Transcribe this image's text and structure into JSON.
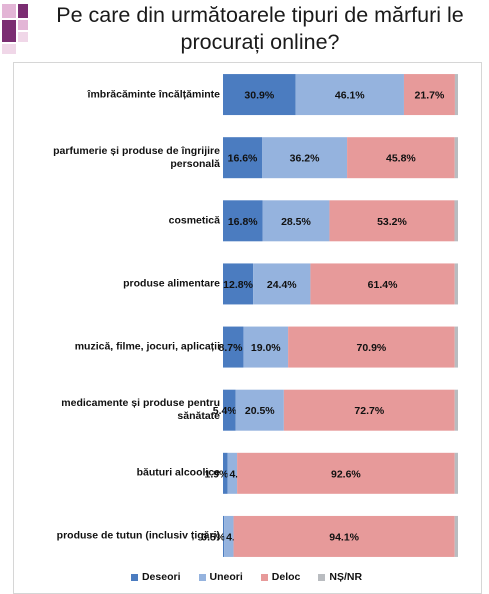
{
  "slide": {
    "title_line1": "Pe care din următoarele tipuri de mărfuri le",
    "title_line2": "procurați online?"
  },
  "colors": {
    "deseori": "#4b7cc0",
    "uneori": "#95b3de",
    "deloc": "#e79a9a",
    "ns_nr": "#b9bcc0",
    "deco_purple": "#7b2d72",
    "deco_pink": "#e3b5d6"
  },
  "chart_data": {
    "type": "bar",
    "orientation": "horizontal",
    "stacked": "percent",
    "categories": [
      "îmbrăcăminte încălțăminte",
      "parfumerie și produse de îngrijire personală",
      "cosmetică",
      "produse alimentare",
      "muzică, filme, jocuri, aplicații",
      "medicamente și produse pentru sănătate",
      "băuturi alcoolice",
      "produse de tutun (inclusiv țigări)"
    ],
    "series": [
      {
        "name": "Deseori",
        "values": [
          30.9,
          16.6,
          16.8,
          12.8,
          8.7,
          5.4,
          1.9,
          0.5
        ],
        "labels": [
          "30.9%",
          "16.6%",
          "16.8%",
          "12.8%",
          "8.7%",
          "5.4%",
          "1.9%",
          "0.5%"
        ]
      },
      {
        "name": "Uneori",
        "values": [
          46.1,
          36.2,
          28.5,
          24.4,
          19.0,
          20.5,
          4.1,
          4.0
        ],
        "labels": [
          "46.1%",
          "36.2%",
          "28.5%",
          "24.4%",
          "19.0%",
          "20.5%",
          "4.1%",
          "4.0%"
        ]
      },
      {
        "name": "Deloc",
        "values": [
          21.7,
          45.8,
          53.2,
          61.4,
          70.9,
          72.7,
          92.6,
          94.1
        ],
        "labels": [
          "21.7%",
          "45.8%",
          "53.2%",
          "61.4%",
          "70.9%",
          "72.7%",
          "92.6%",
          "94.1%"
        ]
      },
      {
        "name": "NȘ/NR",
        "values": [
          1.3,
          1.4,
          1.5,
          1.4,
          1.4,
          1.4,
          1.4,
          1.4
        ],
        "labels": [
          "",
          "",
          "",
          "",
          "",
          "",
          "",
          ""
        ]
      }
    ],
    "xlim": [
      0,
      100
    ],
    "grid": false,
    "legend_position": "bottom"
  }
}
